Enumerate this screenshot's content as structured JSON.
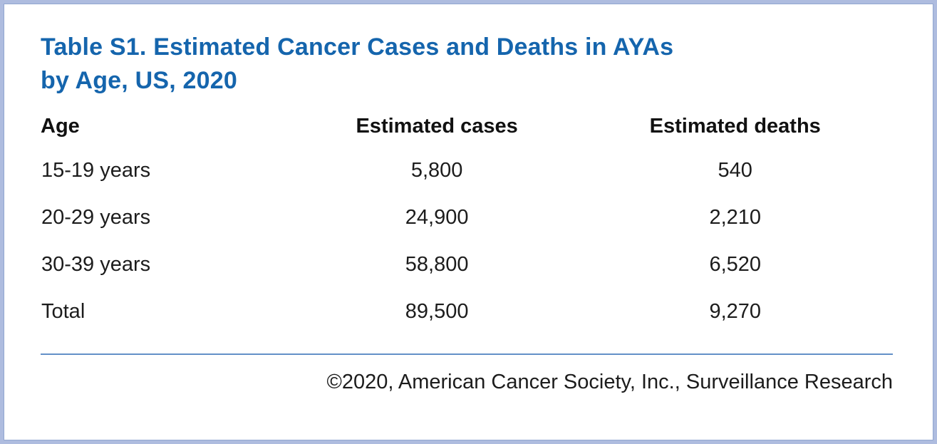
{
  "colors": {
    "title_blue": "#1565ad",
    "outer_border": "#aebcdf",
    "inner_border_line": "#92a6d0",
    "total_rule": "#6390c8",
    "body_text": "#1c1c1c"
  },
  "table": {
    "title_line1": "Table S1. Estimated Cancer Cases and Deaths in AYAs",
    "title_line2": "by Age, US, 2020",
    "columns": [
      "Age",
      "Estimated cases",
      "Estimated deaths"
    ],
    "rows": [
      {
        "age": "15-19 years",
        "cases": "5,800",
        "deaths": "540"
      },
      {
        "age": "20-29 years",
        "cases": "24,900",
        "deaths": "2,210"
      },
      {
        "age": "30-39 years",
        "cases": "58,800",
        "deaths": "6,520"
      },
      {
        "age": "Total",
        "cases": "89,500",
        "deaths": "9,270"
      }
    ],
    "footer": "©2020, American Cancer Society, Inc., Surveillance Research"
  },
  "chart_data": {
    "type": "table",
    "title": "Table S1. Estimated Cancer Cases and Deaths in AYAs by Age, US, 2020",
    "columns": [
      "Age",
      "Estimated cases",
      "Estimated deaths"
    ],
    "rows": [
      [
        "15-19 years",
        5800,
        540
      ],
      [
        "20-29 years",
        24900,
        2210
      ],
      [
        "30-39 years",
        58800,
        6520
      ],
      [
        "Total",
        89500,
        9270
      ]
    ],
    "source": "©2020, American Cancer Society, Inc., Surveillance Research"
  }
}
